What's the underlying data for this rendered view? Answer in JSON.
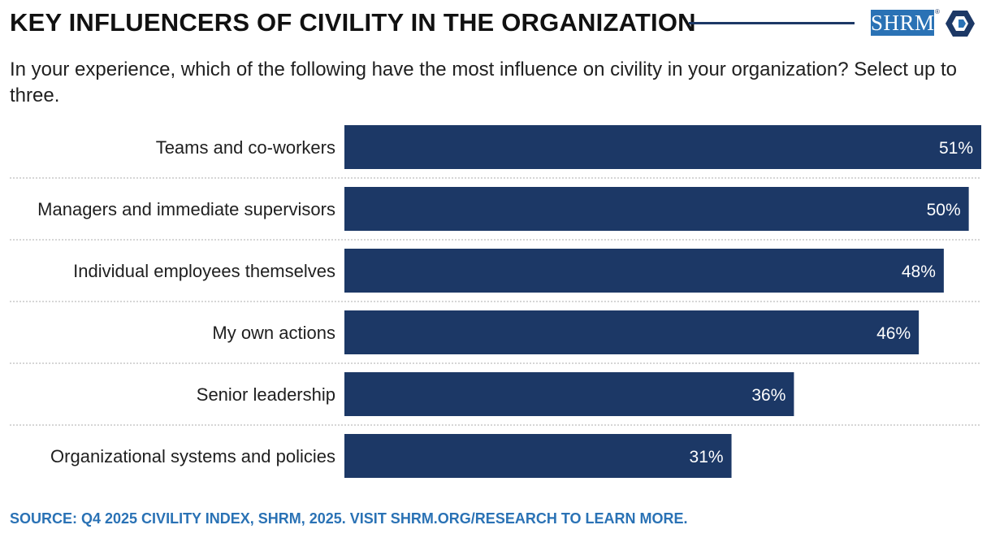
{
  "header": {
    "title": "KEY INFLUENCERS OF CIVILITY IN THE ORGANIZATION",
    "logo_text": "SHRM",
    "logo_reg": "®"
  },
  "subtitle": "In your experience, which of the following have the most influence on civility in your organization? Select up to three.",
  "source": "SOURCE: Q4 2025 CIVILITY INDEX, SHRM, 2025. VISIT SHRM.ORG/RESEARCH TO LEARN MORE.",
  "colors": {
    "bar": "#1c3866",
    "bar_label": "#ffffff",
    "separator": "#c8c8c8",
    "accent": "#2a72b5"
  },
  "chart_data": {
    "type": "bar",
    "orientation": "horizontal",
    "categories": [
      "Teams and co-workers",
      "Managers and immediate supervisors",
      "Individual employees themselves",
      "My own actions",
      "Senior leadership",
      "Organizational systems and policies"
    ],
    "values": [
      51,
      50,
      48,
      46,
      36,
      31
    ],
    "value_labels": [
      "51%",
      "50%",
      "48%",
      "46%",
      "36%",
      "31%"
    ],
    "unit": "%",
    "xlim": [
      0,
      51
    ],
    "grid": false,
    "legend": "none"
  }
}
